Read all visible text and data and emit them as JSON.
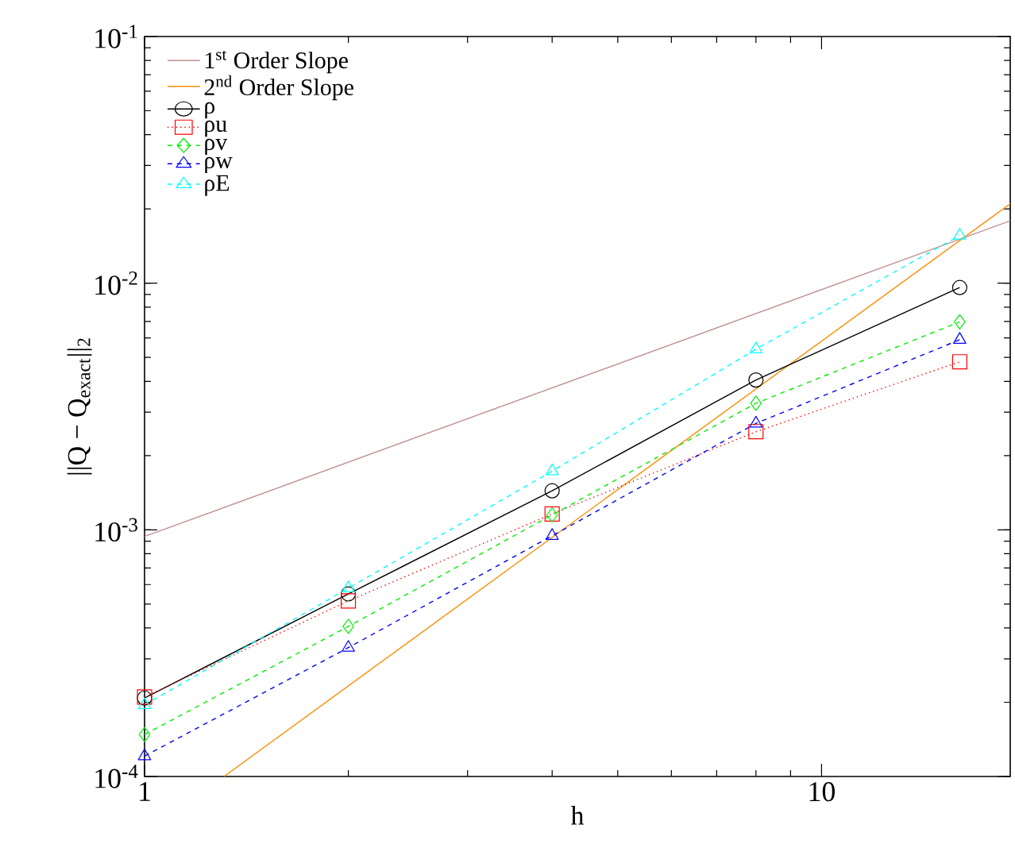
{
  "chart_data": {
    "type": "line",
    "xlabel": "h",
    "ylabel": "||Q − Q$_{exact}$||$_{2}$",
    "log": "xy",
    "legend": "top left",
    "xlim": [
      1,
      19
    ],
    "ylim": [
      0.0001,
      0.1
    ],
    "xticks": [
      1,
      10
    ],
    "yticks": [
      {
        "value": 0.0001,
        "label": "10$^{-4}$"
      },
      {
        "value": 0.001,
        "label": "10$^{-3}$"
      },
      {
        "value": 0.01,
        "label": "10$^{-2}$"
      },
      {
        "value": 0.1,
        "label": "10$^{-1}$"
      }
    ],
    "series": [
      {
        "name": "1$^{st}$ Order Slope",
        "color": "#bc8f8f",
        "marker": "none",
        "line_style": "solid",
        "x": [
          1,
          19
        ],
        "values": [
          0.00094,
          0.0179
        ]
      },
      {
        "name": "2$^{nd}$ Order Slope",
        "color": "#ff8c00",
        "marker": "none",
        "line_style": "solid",
        "x": [
          1.31,
          19
        ],
        "values": [
          0.0001,
          0.021
        ]
      },
      {
        "name": "ρ",
        "color": "#000000",
        "marker": "circle",
        "line_style": "solid",
        "x": [
          1,
          2,
          4,
          8,
          16
        ],
        "values": [
          0.000208,
          0.00055,
          0.00144,
          0.00405,
          0.0096
        ]
      },
      {
        "name": "ρu",
        "color": "#ff0000",
        "marker": "square",
        "line_style": "dotted",
        "x": [
          1,
          2,
          4,
          8,
          16
        ],
        "values": [
          0.00021,
          0.000515,
          0.00116,
          0.0025,
          0.0048
        ]
      },
      {
        "name": "ρv",
        "color": "#00ee00",
        "marker": "diamond",
        "line_style": "dashed",
        "x": [
          1,
          2,
          4,
          8,
          16
        ],
        "values": [
          0.000148,
          0.000406,
          0.00115,
          0.00326,
          0.00697
        ]
      },
      {
        "name": "ρw",
        "color": "#0000ff",
        "marker": "triangle",
        "line_style": "dashed",
        "x": [
          1,
          2,
          4,
          8,
          16
        ],
        "values": [
          0.000121,
          0.000333,
          0.000946,
          0.0027,
          0.0059
        ]
      },
      {
        "name": "ρE",
        "color": "#00ffff",
        "marker": "triangle",
        "line_style": "dashed",
        "x": [
          1,
          2,
          4,
          8,
          16
        ],
        "values": [
          0.000195,
          0.00058,
          0.00173,
          0.0054,
          0.0156
        ]
      }
    ]
  }
}
